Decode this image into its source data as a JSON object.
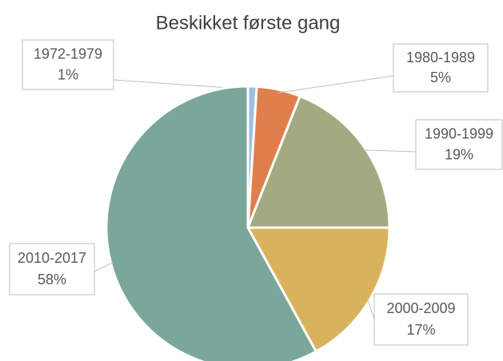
{
  "chart_data": {
    "type": "pie",
    "title": "Beskikket første gang",
    "categories": [
      "1972-1979",
      "1980-1989",
      "1990-1999",
      "2000-2009",
      "2010-2017"
    ],
    "values": [
      1,
      5,
      19,
      17,
      58
    ],
    "value_labels": [
      "1%",
      "5%",
      "19%",
      "17%",
      "58%"
    ],
    "colors": [
      "#9dbfe0",
      "#df7f4b",
      "#a3aa80",
      "#d9b35c",
      "#7ba79b"
    ]
  }
}
